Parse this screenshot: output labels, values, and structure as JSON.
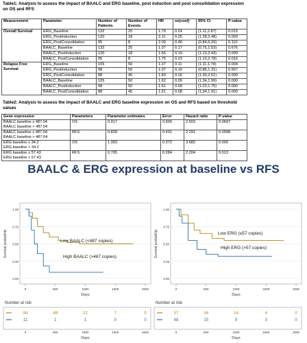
{
  "table1": {
    "title": "Table1: Analysis to assess the impact of BAALC and ERG baseline, post induction and post consolidation expression on OS and RFS",
    "header": [
      "Measurement",
      "Parameter",
      "Number of Patients",
      "Number of Events",
      "HR",
      "se(coef)",
      "95% CI",
      "P-value"
    ],
    "groups": [
      {
        "measurement": "Overall Survival",
        "rows": [
          [
            "ERG_Baseline",
            "132",
            "25",
            "1.79",
            "0.24",
            "(1.11,2.87)",
            "0.015"
          ],
          [
            "ERG_PostInduction",
            "120",
            "18",
            "2.11",
            "0.25",
            "(1.28,3.48)",
            "0.003"
          ],
          [
            "ERG_PostConsolidation",
            "95",
            "8",
            "2.09",
            "0.46",
            "(0.84,5.20)",
            "0.110"
          ],
          [
            "BAALC_Baseline",
            "132",
            "25",
            "1.07",
            "0.17",
            "(0.75,1.53)",
            "0.676"
          ],
          [
            "BAALC_PostInduction",
            "120",
            "18",
            "1.66",
            "0.19",
            "(1.13,2.43)",
            "0.009"
          ],
          [
            "BAALC_PostConsolidation",
            "95",
            "8",
            "1.75",
            "0.23",
            "(1.10,2.78)",
            "0.016"
          ]
        ]
      },
      {
        "measurement": "Relapse Free Survival",
        "rows": [
          [
            "ERG_Baseline",
            "105",
            "50",
            "1.37",
            "0.11",
            "(1.11,1.74)",
            "0.004"
          ],
          [
            "ERG_PostInduction",
            "98",
            "50",
            "1.07",
            "0.10",
            "(0.86,1.31)",
            "0.567"
          ],
          [
            "ERG_PostConsolidation",
            "88",
            "45",
            "1.83",
            "0.16",
            "(1.30,2.51)",
            "0.000"
          ],
          [
            "BAALC_Baseline",
            "105",
            "50",
            "1.62",
            "0.09",
            "(1.34,1.99)",
            "0.000"
          ],
          [
            "BAALC_PostInduction",
            "98",
            "50",
            "1.51",
            "0.09",
            "(1.23,1.75)",
            "0.000"
          ],
          [
            "BAALC_PostConsolidation",
            "88",
            "45",
            "1.61",
            "0.08",
            "(1.34,1.91)",
            "0.000"
          ]
        ]
      }
    ]
  },
  "table2": {
    "title": "Table2: Analysis to assess the impact of BAALC and ERG baseline expression on OS and RFS based on threshold values",
    "header": [
      "Gene expression",
      "Parameters",
      "Parameter estimates",
      "Error",
      "Hazard ratio",
      "P-value"
    ],
    "rows": [
      {
        "gene": [
          "BAALC baseline ≤ 487.04",
          "BAALC baseline > 487.04"
        ],
        "cells": [
          "OS",
          "0.917",
          "0.505",
          "2.503",
          "0.0697"
        ]
      },
      {
        "gene": [
          "BAALC baseline ≤ 487.04",
          "BAALC baseline > 487.04"
        ],
        "cells": [
          "RFS",
          "0.828",
          "0.431",
          "2.291",
          "0.0598"
        ]
      },
      {
        "gene": [
          "ERG baseline ≤ 34.2",
          "ERG baseline > 34.2"
        ],
        "cells": [
          "OS",
          "1.303",
          "0.372",
          "3.682",
          "0.000"
        ]
      },
      {
        "gene": [
          "ERG baseline ≤ 57.43",
          "ERG baseline > 57.43"
        ],
        "cells": [
          "RFS",
          "0.705",
          "0.284",
          "2.204",
          "0.013"
        ]
      }
    ]
  },
  "figure_title": "BAALC & ERG expression at baseline vs RFS",
  "plots": [
    {
      "ylabel": "Survival probability",
      "xlabel": "Days",
      "xticks": [
        0,
        500,
        1000,
        1500,
        2000
      ],
      "yticks": [
        {
          "value": 0,
          "label": "0.00"
        },
        {
          "value": 0.25,
          "label": "0.25"
        },
        {
          "value": 0.5,
          "label": "0.50"
        },
        {
          "value": 0.75,
          "label": "0.75"
        },
        {
          "value": 1,
          "label": "1.00"
        }
      ],
      "curves": [
        {
          "label": "Low BAALC (<487 copies)",
          "color": "#b8860b",
          "x": [
            0,
            60,
            120,
            200,
            300,
            400,
            550,
            700,
            900,
            1800
          ],
          "y": [
            1,
            0.95,
            0.87,
            0.75,
            0.66,
            0.6,
            0.55,
            0.52,
            0.5,
            0.5
          ]
        },
        {
          "label": "High BAALC (>487 copies)",
          "color": "#1f6fb4",
          "x": [
            0,
            60,
            100,
            150,
            200,
            300,
            400,
            1300
          ],
          "y": [
            1,
            0.9,
            0.7,
            0.5,
            0.36,
            0.18,
            0.09,
            0.09
          ]
        }
      ],
      "risk_title": "Number at risk",
      "risk_xlabel": "Days",
      "risk": [
        [
          94,
          48,
          22,
          7,
          0
        ],
        [
          11,
          1,
          1,
          0,
          0
        ]
      ]
    },
    {
      "ylabel": "Survival probability",
      "xlabel": "Days",
      "xticks": [
        0,
        500,
        1000,
        1500,
        2000
      ],
      "yticks": [
        {
          "value": 0,
          "label": "0.00"
        },
        {
          "value": 0.25,
          "label": "0.25"
        },
        {
          "value": 0.5,
          "label": "0.50"
        },
        {
          "value": 0.75,
          "label": "0.75"
        },
        {
          "value": 1,
          "label": "1.00"
        }
      ],
      "curves": [
        {
          "label": "Low ERG (≤57 copies)",
          "color": "#b8860b",
          "x": [
            0,
            80,
            200,
            300,
            400,
            600,
            800,
            1800
          ],
          "y": [
            1,
            0.92,
            0.8,
            0.7,
            0.65,
            0.58,
            0.55,
            0.55
          ]
        },
        {
          "label": "High ERG (>57 copies)",
          "color": "#1f6fb4",
          "x": [
            0,
            50,
            100,
            200,
            350,
            500,
            700,
            1600
          ],
          "y": [
            1,
            0.9,
            0.8,
            0.55,
            0.42,
            0.35,
            0.32,
            0.32
          ]
        }
      ],
      "risk_title": "Number at risk",
      "risk_xlabel": "Days",
      "risk": [
        [
          57,
          34,
          14,
          4,
          0
        ],
        [
          48,
          15,
          9,
          3,
          0
        ]
      ]
    }
  ]
}
